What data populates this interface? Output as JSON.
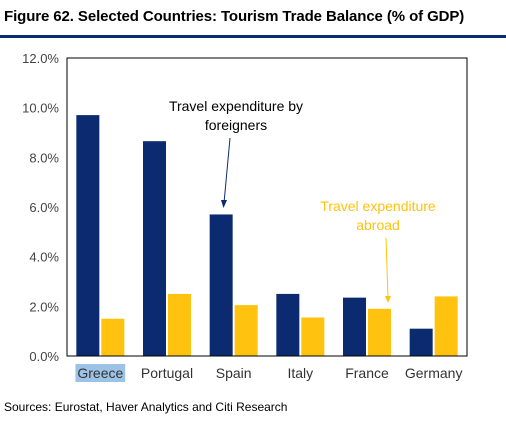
{
  "header": {
    "title": "Figure 62. Selected Countries: Tourism Trade Balance (% of GDP)"
  },
  "footer": {
    "source": "Sources: Eurostat, Haver Analytics and Citi Research"
  },
  "colors": {
    "series1": "#0b2a6f",
    "series2": "#ffc20e",
    "highlight": "#9cc3e6",
    "rule": "#0b2a6f"
  },
  "annotations": {
    "foreigners": [
      "Travel expenditure by",
      "foreigners"
    ],
    "abroad": [
      "Travel expenditure",
      "abroad"
    ]
  },
  "chart_data": {
    "type": "bar",
    "title": "Figure 62. Selected Countries: Tourism Trade Balance (% of GDP)",
    "categories": [
      "Greece",
      "Portugal",
      "Spain",
      "Italy",
      "France",
      "Germany"
    ],
    "highlighted_category": "Greece",
    "series": [
      {
        "name": "Travel expenditure by foreigners",
        "values": [
          9.7,
          8.65,
          5.7,
          2.5,
          2.35,
          1.1
        ]
      },
      {
        "name": "Travel expenditure abroad",
        "values": [
          1.5,
          2.5,
          2.05,
          1.55,
          1.9,
          2.4
        ]
      }
    ],
    "ylim": [
      0,
      12
    ],
    "yticks": [
      "0.0%",
      "2.0%",
      "4.0%",
      "6.0%",
      "8.0%",
      "10.0%",
      "12.0%"
    ],
    "ytick_values": [
      0,
      2,
      4,
      6,
      8,
      10,
      12
    ],
    "grid": false,
    "legend": "annotations inside plot"
  }
}
